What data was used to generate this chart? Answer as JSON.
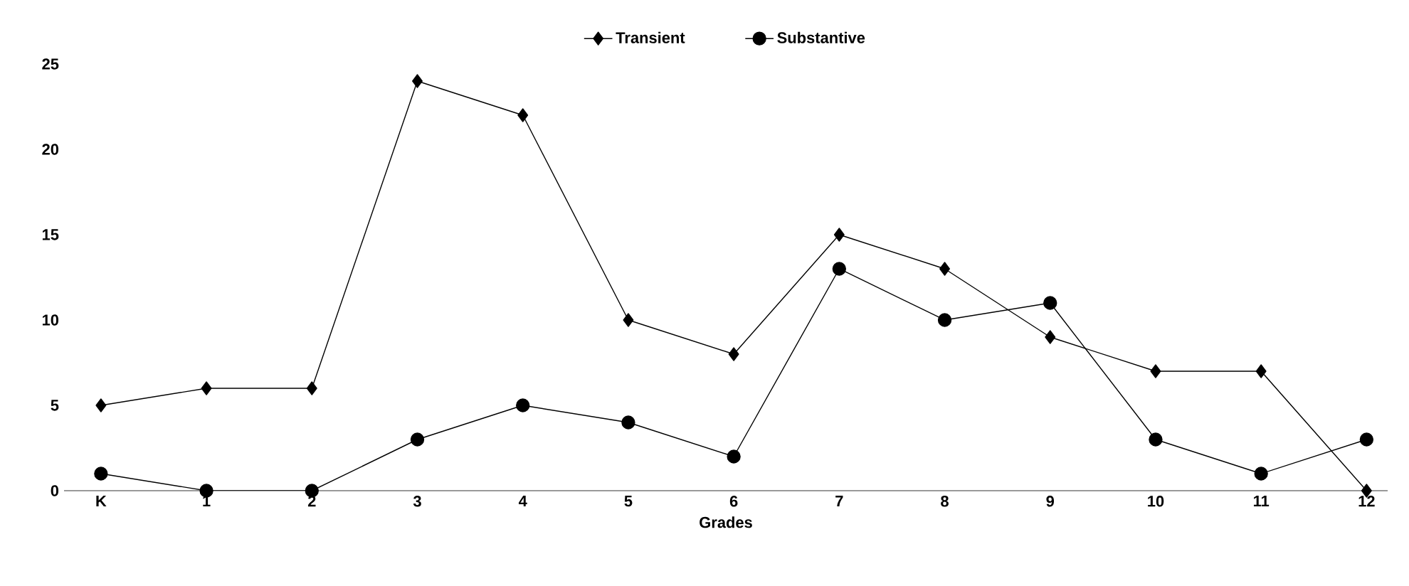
{
  "chart_data": {
    "type": "line",
    "xlabel": "Grades",
    "categories": [
      "K",
      "1",
      "2",
      "3",
      "4",
      "5",
      "6",
      "7",
      "8",
      "9",
      "10",
      "11",
      "12"
    ],
    "series": [
      {
        "name": "Transient",
        "color": "#000000",
        "marker": "diamond",
        "values": [
          5,
          6,
          6,
          24,
          22,
          10,
          8,
          15,
          13,
          9,
          7,
          7,
          0
        ]
      },
      {
        "name": "Substantive",
        "color": "#000000",
        "marker": "circle",
        "values": [
          1,
          0,
          0,
          3,
          5,
          4,
          2,
          13,
          10,
          11,
          3,
          1,
          3
        ]
      }
    ],
    "ylim": [
      0,
      25
    ],
    "yticks": [
      0,
      5,
      10,
      15,
      20,
      25
    ],
    "grid": false,
    "legend": "top",
    "line_style": "solid"
  }
}
